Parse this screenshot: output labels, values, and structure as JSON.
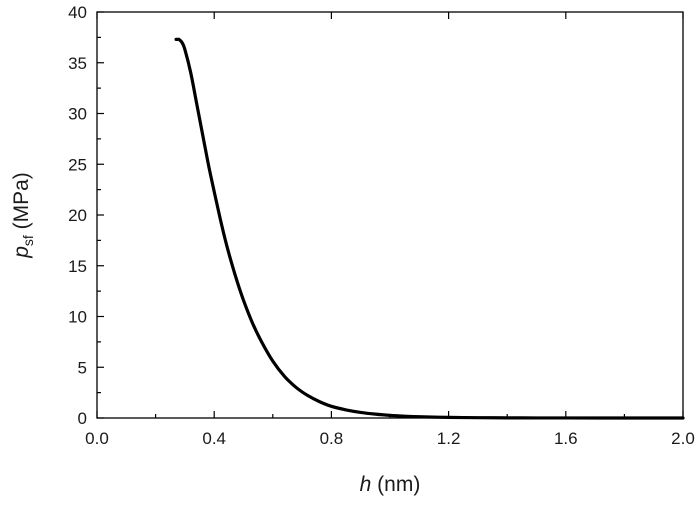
{
  "chart_data": {
    "type": "line",
    "xlabel": {
      "var": "h",
      "unit": " (nm)"
    },
    "ylabel": {
      "var": "p",
      "sub": "sf",
      "unit": " (MPa)"
    },
    "xlim": [
      0,
      2.0
    ],
    "ylim": [
      0,
      40
    ],
    "x_ticks": [
      "0.0",
      "0.4",
      "0.8",
      "1.2",
      "1.6",
      "2.0"
    ],
    "x_tick_values": [
      0,
      0.4,
      0.8,
      1.2,
      1.6,
      2.0
    ],
    "y_ticks": [
      "0",
      "5",
      "10",
      "15",
      "20",
      "25",
      "30",
      "35",
      "40"
    ],
    "y_tick_values": [
      0,
      5,
      10,
      15,
      20,
      25,
      30,
      35,
      40
    ],
    "grid": false,
    "series": [
      {
        "color": "#000000",
        "x": [
          0.27,
          0.275,
          0.28,
          0.29,
          0.3,
          0.32,
          0.34,
          0.36,
          0.38,
          0.4,
          0.42,
          0.44,
          0.46,
          0.48,
          0.5,
          0.53,
          0.56,
          0.6,
          0.64,
          0.68,
          0.72,
          0.76,
          0.8,
          0.85,
          0.9,
          0.95,
          1.0,
          1.05,
          1.1,
          1.2,
          1.3,
          1.4,
          1.5,
          1.6,
          1.8,
          2.0
        ],
        "y": [
          37.3,
          37.3,
          37.3,
          37.0,
          36.3,
          34.0,
          31.0,
          28.0,
          25.0,
          22.3,
          19.7,
          17.3,
          15.2,
          13.3,
          11.6,
          9.4,
          7.6,
          5.6,
          4.1,
          3.0,
          2.2,
          1.6,
          1.15,
          0.8,
          0.55,
          0.38,
          0.26,
          0.18,
          0.12,
          0.06,
          0.03,
          0.015,
          0.008,
          0.004,
          0.001,
          0.0
        ]
      }
    ]
  }
}
